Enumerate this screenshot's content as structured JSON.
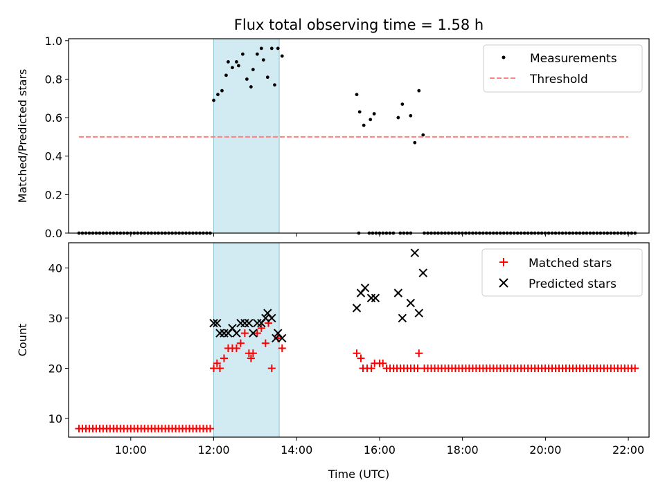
{
  "chart_data": {
    "type": "scatter",
    "title": "Flux total observing time = 1.58 h",
    "xlabel": "Time (UTC)",
    "x_unit": "hours UTC",
    "xlim": [
      8.5,
      22.5
    ],
    "xticks": [
      10,
      12,
      14,
      16,
      18,
      20,
      22
    ],
    "xtick_labels": [
      "10:00",
      "12:00",
      "14:00",
      "16:00",
      "18:00",
      "20:00",
      "22:00"
    ],
    "highlight_span": {
      "start": 12.0,
      "end": 13.58,
      "color": "#add8e6"
    },
    "panels": [
      {
        "name": "ratio",
        "ylabel": "Matched/Predicted stars",
        "ylim": [
          0,
          1.01
        ],
        "yticks": [
          "0.0",
          "0.2",
          "0.4",
          "0.6",
          "0.8",
          "1.0"
        ],
        "ytick_values": [
          0,
          0.2,
          0.4,
          0.6,
          0.8,
          1.0
        ],
        "legend_position": "top-right",
        "series": [
          {
            "name": "Measurements",
            "marker": "dot",
            "color": "#000000",
            "zero_ranges": [
              [
                8.75,
                11.95,
                0.0833
              ],
              [
                15.5,
                15.5,
                0.0833
              ],
              [
                15.75,
                16.33,
                0.0833
              ],
              [
                16.5,
                16.75,
                0.0833
              ],
              [
                17.08,
                22.17,
                0.0833
              ]
            ],
            "points": [
              [
                12.0,
                0.69
              ],
              [
                12.1,
                0.72
              ],
              [
                12.2,
                0.74
              ],
              [
                12.3,
                0.82
              ],
              [
                12.35,
                0.89
              ],
              [
                12.45,
                0.86
              ],
              [
                12.55,
                0.89
              ],
              [
                12.6,
                0.87
              ],
              [
                12.7,
                0.93
              ],
              [
                12.8,
                0.8
              ],
              [
                12.9,
                0.76
              ],
              [
                12.95,
                0.85
              ],
              [
                13.05,
                0.93
              ],
              [
                13.15,
                0.96
              ],
              [
                13.2,
                0.9
              ],
              [
                13.3,
                0.81
              ],
              [
                13.4,
                0.96
              ],
              [
                13.47,
                0.77
              ],
              [
                13.55,
                0.96
              ],
              [
                13.65,
                0.92
              ],
              [
                15.45,
                0.72
              ],
              [
                15.52,
                0.63
              ],
              [
                15.62,
                0.56
              ],
              [
                15.78,
                0.59
              ],
              [
                15.87,
                0.62
              ],
              [
                16.45,
                0.6
              ],
              [
                16.55,
                0.67
              ],
              [
                16.75,
                0.61
              ],
              [
                16.85,
                0.47
              ],
              [
                16.95,
                0.74
              ],
              [
                17.05,
                0.51
              ]
            ]
          },
          {
            "name": "Threshold",
            "marker": "dashed-line",
            "color": "#ff7f7f",
            "x_range": [
              8.75,
              22.0
            ],
            "value": 0.5
          }
        ]
      },
      {
        "name": "counts",
        "ylabel": "Count",
        "ylim": [
          6.3,
          45
        ],
        "yticks": [
          "10",
          "20",
          "30",
          "40"
        ],
        "ytick_values": [
          10,
          20,
          30,
          40
        ],
        "legend_position": "top-right",
        "series": [
          {
            "name": "Matched stars",
            "marker": "plus",
            "color": "#ff0000",
            "constant_ranges": [
              [
                8.75,
                11.95,
                0.0833,
                8
              ],
              [
                16.17,
                16.92,
                0.0833,
                20
              ],
              [
                17.08,
                22.17,
                0.0833,
                20
              ]
            ],
            "points": [
              [
                12.0,
                20
              ],
              [
                12.08,
                21
              ],
              [
                12.15,
                20
              ],
              [
                12.25,
                22
              ],
              [
                12.35,
                24
              ],
              [
                12.45,
                24
              ],
              [
                12.55,
                24
              ],
              [
                12.65,
                25
              ],
              [
                12.75,
                27
              ],
              [
                12.85,
                23
              ],
              [
                12.9,
                22
              ],
              [
                12.95,
                23
              ],
              [
                13.05,
                27
              ],
              [
                13.15,
                28
              ],
              [
                13.25,
                25
              ],
              [
                13.32,
                29
              ],
              [
                13.4,
                20
              ],
              [
                13.55,
                26
              ],
              [
                13.65,
                24
              ],
              [
                15.45,
                23
              ],
              [
                15.55,
                22
              ],
              [
                15.6,
                20
              ],
              [
                15.7,
                20
              ],
              [
                15.8,
                20
              ],
              [
                15.88,
                21
              ],
              [
                16.0,
                21
              ],
              [
                16.08,
                21
              ],
              [
                16.95,
                23
              ]
            ]
          },
          {
            "name": "Predicted stars",
            "marker": "x",
            "color": "#000000",
            "points": [
              [
                12.0,
                29
              ],
              [
                12.08,
                29
              ],
              [
                12.15,
                27
              ],
              [
                12.25,
                27
              ],
              [
                12.35,
                27
              ],
              [
                12.45,
                28
              ],
              [
                12.55,
                27
              ],
              [
                12.65,
                29
              ],
              [
                12.75,
                29
              ],
              [
                12.85,
                29
              ],
              [
                12.95,
                27
              ],
              [
                13.05,
                29
              ],
              [
                13.15,
                29
              ],
              [
                13.25,
                30
              ],
              [
                13.3,
                31
              ],
              [
                13.4,
                30
              ],
              [
                13.5,
                26
              ],
              [
                13.55,
                27
              ],
              [
                13.65,
                26
              ],
              [
                15.45,
                32
              ],
              [
                15.55,
                35
              ],
              [
                15.65,
                36
              ],
              [
                15.8,
                34
              ],
              [
                15.9,
                34
              ],
              [
                16.45,
                35
              ],
              [
                16.55,
                30
              ],
              [
                16.75,
                33
              ],
              [
                16.85,
                43
              ],
              [
                16.95,
                31
              ],
              [
                17.05,
                39
              ]
            ]
          }
        ]
      }
    ]
  }
}
